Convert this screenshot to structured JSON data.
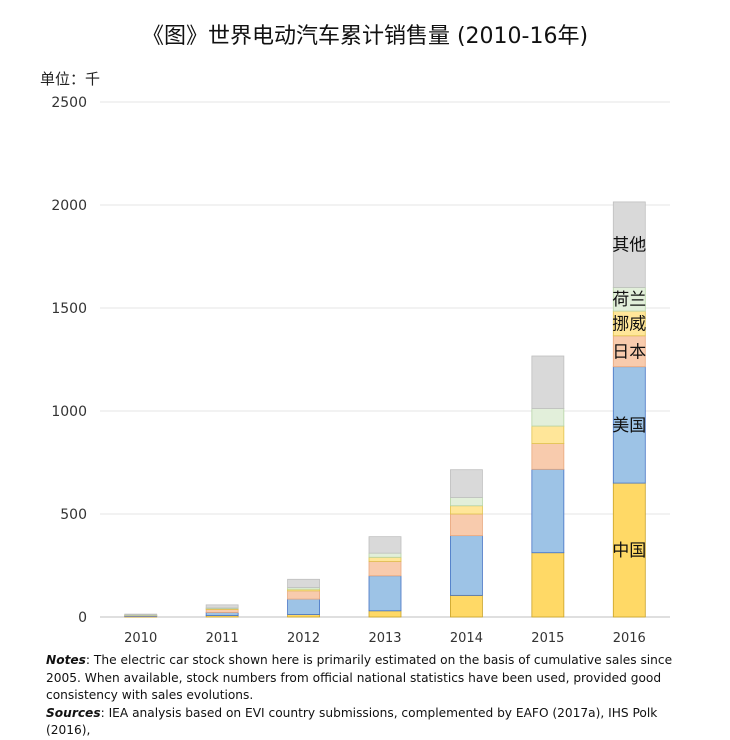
{
  "title": "《图》世界电动汽车累计销售量 (2010-16年)",
  "unit_label": "单位：千",
  "notes_label": "Notes",
  "notes_text": ": The electric car stock shown here is primarily estimated on the basis of cumulative sales since 2005. When available, stock numbers from official national statistics have been used, provided good consistency with sales evolutions.",
  "sources_label": "Sources",
  "sources_text": ": IEA analysis based on EVI country submissions, complemented by EAFO (2017a), IHS Polk (2016),",
  "chart_data": {
    "type": "bar",
    "stacked": true,
    "categories": [
      "2010",
      "2011",
      "2012",
      "2013",
      "2014",
      "2015",
      "2016"
    ],
    "ylim": [
      0,
      2500
    ],
    "yticks": [
      0,
      500,
      1000,
      1500,
      2000,
      2500
    ],
    "grid": true,
    "series": [
      {
        "name": "中国",
        "color": "#FFD966",
        "stroke": "#C9A227",
        "values": [
          2,
          7,
          12,
          30,
          105,
          312,
          650
        ]
      },
      {
        "name": "美国",
        "color": "#9DC3E6",
        "stroke": "#4472C4",
        "values": [
          3,
          15,
          75,
          170,
          290,
          405,
          565
        ]
      },
      {
        "name": "日本",
        "color": "#F8CBAD",
        "stroke": "#E8A77D",
        "values": [
          3,
          15,
          40,
          70,
          105,
          125,
          150
        ]
      },
      {
        "name": "挪威",
        "color": "#FFE699",
        "stroke": "#E0C24E",
        "values": [
          1,
          4,
          8,
          20,
          40,
          85,
          120
        ]
      },
      {
        "name": "荷兰",
        "color": "#E2EFDA",
        "stroke": "#B5D3A4",
        "values": [
          1,
          3,
          8,
          20,
          40,
          85,
          115
        ]
      },
      {
        "name": "其他",
        "color": "#D9D9D9",
        "stroke": "#BFBFBF",
        "values": [
          4,
          15,
          40,
          80,
          135,
          255,
          415
        ]
      }
    ]
  }
}
